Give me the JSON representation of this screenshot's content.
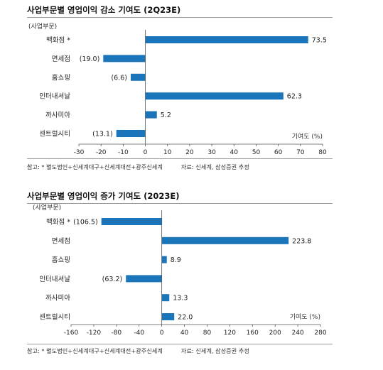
{
  "chart_data": [
    {
      "type": "bar",
      "orientation": "horizontal",
      "title": "사업부문별 영업이익 감소 기여도 (2Q23E)",
      "category_header": "(사업부문)",
      "xlabel": "기여도 (%)",
      "categories": [
        "백화점 *",
        "면세점",
        "홈쇼핑",
        "인터내셔날",
        "까사미아",
        "센트럴시티"
      ],
      "values": [
        73.5,
        -19.0,
        -6.6,
        62.3,
        5.2,
        -13.1
      ],
      "value_labels": [
        "73.5",
        "(19.0)",
        "(6.6)",
        "62.3",
        "5.2",
        "(13.1)"
      ],
      "xlim": [
        -30,
        80
      ],
      "xticks": [
        -30,
        -20,
        -10,
        0,
        10,
        20,
        30,
        40,
        50,
        60,
        70,
        80
      ],
      "grid": false,
      "bar_color": "#1b75bb",
      "note": "참고: * 별도법인+신세계대구+신세계대전+광주신세계",
      "source": "자료: 신세계, 삼성증권 추정"
    },
    {
      "type": "bar",
      "orientation": "horizontal",
      "title": "사업부문별 영업이익 증가 기여도 (2023E)",
      "category_header": "(사업부문)",
      "xlabel": "기여도 (%)",
      "categories": [
        "백화점 *",
        "면세점",
        "홈쇼핑",
        "인터내셔날",
        "까사미아",
        "센트럴시티"
      ],
      "values": [
        -106.5,
        223.8,
        8.9,
        -63.2,
        13.3,
        22.0
      ],
      "value_labels": [
        "(106.5)",
        "223.8",
        "8.9",
        "(63.2)",
        "13.3",
        "22.0"
      ],
      "xlim": [
        -160,
        280
      ],
      "xticks": [
        -160,
        -120,
        -80,
        -40,
        0,
        40,
        80,
        120,
        160,
        200,
        240,
        280
      ],
      "grid": false,
      "bar_color": "#1b75bb",
      "note": "참고: * 별도법인+신세계대구+신세계대전+광주신세계",
      "source": "자료: 신세계, 삼성증권 추정"
    }
  ]
}
